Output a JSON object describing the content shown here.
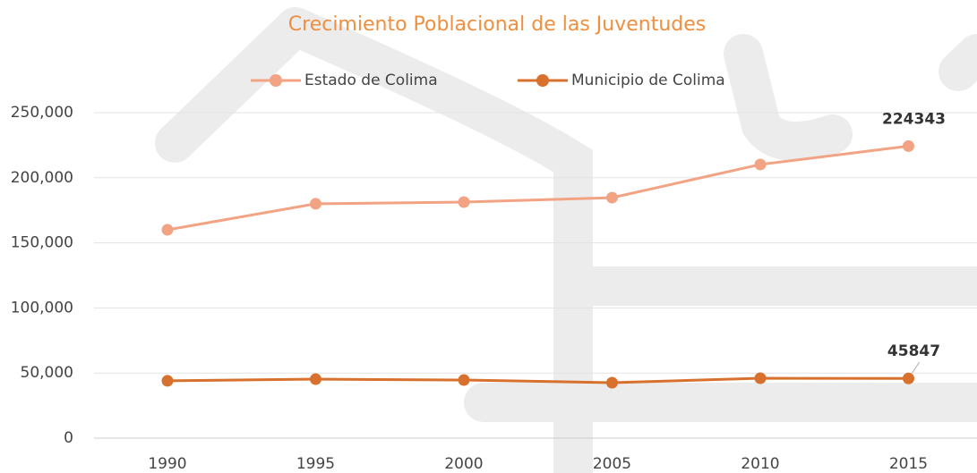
{
  "chart_data": {
    "type": "line",
    "title": "Crecimiento Poblacional de las Juventudes",
    "categories": [
      "1990",
      "1995",
      "2000",
      "2005",
      "2010",
      "2015"
    ],
    "series": [
      {
        "name": "Estado de Colima",
        "color": "#f2a384",
        "values": [
          160000,
          180000,
          181300,
          184700,
          210200,
          224343
        ]
      },
      {
        "name": "Municipio de Colima",
        "color": "#d8712e",
        "values": [
          44000,
          45300,
          44600,
          42600,
          46000,
          45847
        ]
      }
    ],
    "ylim": [
      0,
      250000
    ],
    "yticks": [
      {
        "value": 0,
        "label": "0"
      },
      {
        "value": 50000,
        "label": "50,000"
      },
      {
        "value": 100000,
        "label": "100,000"
      },
      {
        "value": 150000,
        "label": "150,000"
      },
      {
        "value": 200000,
        "label": "200,000"
      },
      {
        "value": 250000,
        "label": "250,000"
      }
    ],
    "grid": true,
    "legend": "top"
  }
}
